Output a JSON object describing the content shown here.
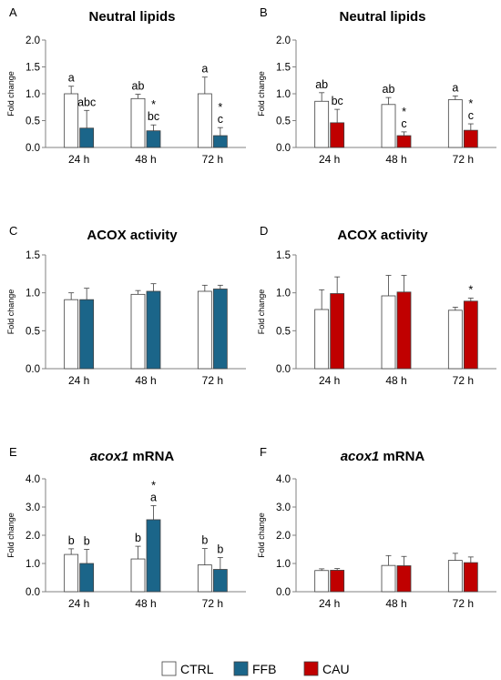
{
  "colors": {
    "ctrl": "#ffffff",
    "ffb": "#1b6589",
    "cau": "#c00000",
    "stroke": "#404040"
  },
  "legend": [
    {
      "label": "CTRL",
      "color": "#ffffff"
    },
    {
      "label": "FFB",
      "color": "#1b6589"
    },
    {
      "label": "CAU",
      "color": "#c00000"
    }
  ],
  "chart_data": [
    {
      "type": "bar",
      "panel": "A",
      "title": "Neutral lipids",
      "title_italic": "",
      "ylabel": "Fold change",
      "ylim": [
        0,
        2.0
      ],
      "yticks": [
        "0.0",
        "0.5",
        "1.0",
        "1.5",
        "2.0"
      ],
      "categories": [
        "24 h",
        "48 h",
        "72 h"
      ],
      "series": [
        {
          "name": "CTRL",
          "color": "#ffffff",
          "values": [
            1.0,
            0.91,
            1.0
          ],
          "errors": [
            0.14,
            0.08,
            0.31
          ],
          "labels": [
            "a",
            "ab",
            "a"
          ]
        },
        {
          "name": "FFB",
          "color": "#1b6589",
          "values": [
            0.36,
            0.31,
            0.22
          ],
          "errors": [
            0.33,
            0.11,
            0.15
          ],
          "labels": [
            "abc",
            "*\nbc",
            "*\nc"
          ]
        }
      ]
    },
    {
      "type": "bar",
      "panel": "B",
      "title": "Neutral lipids",
      "title_italic": "",
      "ylabel": "Fold change",
      "ylim": [
        0,
        2.0
      ],
      "yticks": [
        "0.0",
        "0.5",
        "1.0",
        "1.5",
        "2.0"
      ],
      "categories": [
        "24 h",
        "48 h",
        "72 h"
      ],
      "series": [
        {
          "name": "CTRL",
          "color": "#ffffff",
          "values": [
            0.86,
            0.8,
            0.89
          ],
          "errors": [
            0.16,
            0.13,
            0.07
          ],
          "labels": [
            "ab",
            "ab",
            "a"
          ]
        },
        {
          "name": "CAU",
          "color": "#c00000",
          "values": [
            0.46,
            0.22,
            0.32
          ],
          "errors": [
            0.25,
            0.07,
            0.12
          ],
          "labels": [
            "bc",
            "*\nc",
            "*\nc"
          ]
        }
      ]
    },
    {
      "type": "bar",
      "panel": "C",
      "title": "ACOX activity",
      "title_italic": "",
      "ylabel": "Fold change",
      "ylim": [
        0,
        1.5
      ],
      "yticks": [
        "0.0",
        "0.5",
        "1.0",
        "1.5"
      ],
      "categories": [
        "24 h",
        "48 h",
        "72 h"
      ],
      "series": [
        {
          "name": "CTRL",
          "color": "#ffffff",
          "values": [
            0.91,
            0.98,
            1.02
          ],
          "errors": [
            0.09,
            0.05,
            0.08
          ],
          "labels": [
            "",
            "",
            ""
          ]
        },
        {
          "name": "FFB",
          "color": "#1b6589",
          "values": [
            0.91,
            1.02,
            1.05
          ],
          "errors": [
            0.15,
            0.1,
            0.05
          ],
          "labels": [
            "",
            "",
            ""
          ]
        }
      ]
    },
    {
      "type": "bar",
      "panel": "D",
      "title": "ACOX activity",
      "title_italic": "",
      "ylabel": "Fold change",
      "ylim": [
        0,
        1.5
      ],
      "yticks": [
        "0.0",
        "0.5",
        "1.0",
        "1.5"
      ],
      "categories": [
        "24 h",
        "48 h",
        "72 h"
      ],
      "series": [
        {
          "name": "CTRL",
          "color": "#ffffff",
          "values": [
            0.78,
            0.96,
            0.77
          ],
          "errors": [
            0.26,
            0.27,
            0.04
          ],
          "labels": [
            "",
            "",
            ""
          ]
        },
        {
          "name": "CAU",
          "color": "#c00000",
          "values": [
            0.99,
            1.01,
            0.89
          ],
          "errors": [
            0.22,
            0.22,
            0.04
          ],
          "labels": [
            "",
            "",
            "*"
          ]
        }
      ]
    },
    {
      "type": "bar",
      "panel": "E",
      "title": " mRNA",
      "title_italic": "acox1",
      "ylabel": "Fold change",
      "ylim": [
        0,
        4.0
      ],
      "yticks": [
        "0.0",
        "1.0",
        "2.0",
        "3.0",
        "4.0"
      ],
      "categories": [
        "24 h",
        "48 h",
        "72 h"
      ],
      "series": [
        {
          "name": "CTRL",
          "color": "#ffffff",
          "values": [
            1.32,
            1.16,
            0.95
          ],
          "errors": [
            0.2,
            0.45,
            0.58
          ],
          "labels": [
            "b",
            "b",
            "b"
          ]
        },
        {
          "name": "FFB",
          "color": "#1b6589",
          "values": [
            1.0,
            2.55,
            0.79
          ],
          "errors": [
            0.5,
            0.5,
            0.42
          ],
          "labels": [
            "b",
            "*\na",
            "b"
          ]
        }
      ]
    },
    {
      "type": "bar",
      "panel": "F",
      "title": " mRNA",
      "title_italic": "acox1",
      "ylabel": "Fold change",
      "ylim": [
        0,
        4.0
      ],
      "yticks": [
        "0.0",
        "1.0",
        "2.0",
        "3.0",
        "4.0"
      ],
      "categories": [
        "24 h",
        "48 h",
        "72 h"
      ],
      "series": [
        {
          "name": "CTRL",
          "color": "#ffffff",
          "values": [
            0.75,
            0.93,
            1.11
          ],
          "errors": [
            0.06,
            0.35,
            0.25
          ],
          "labels": [
            "",
            "",
            ""
          ]
        },
        {
          "name": "CAU",
          "color": "#c00000",
          "values": [
            0.76,
            0.92,
            1.03
          ],
          "errors": [
            0.06,
            0.33,
            0.2
          ],
          "labels": [
            "",
            "",
            ""
          ]
        }
      ]
    }
  ]
}
